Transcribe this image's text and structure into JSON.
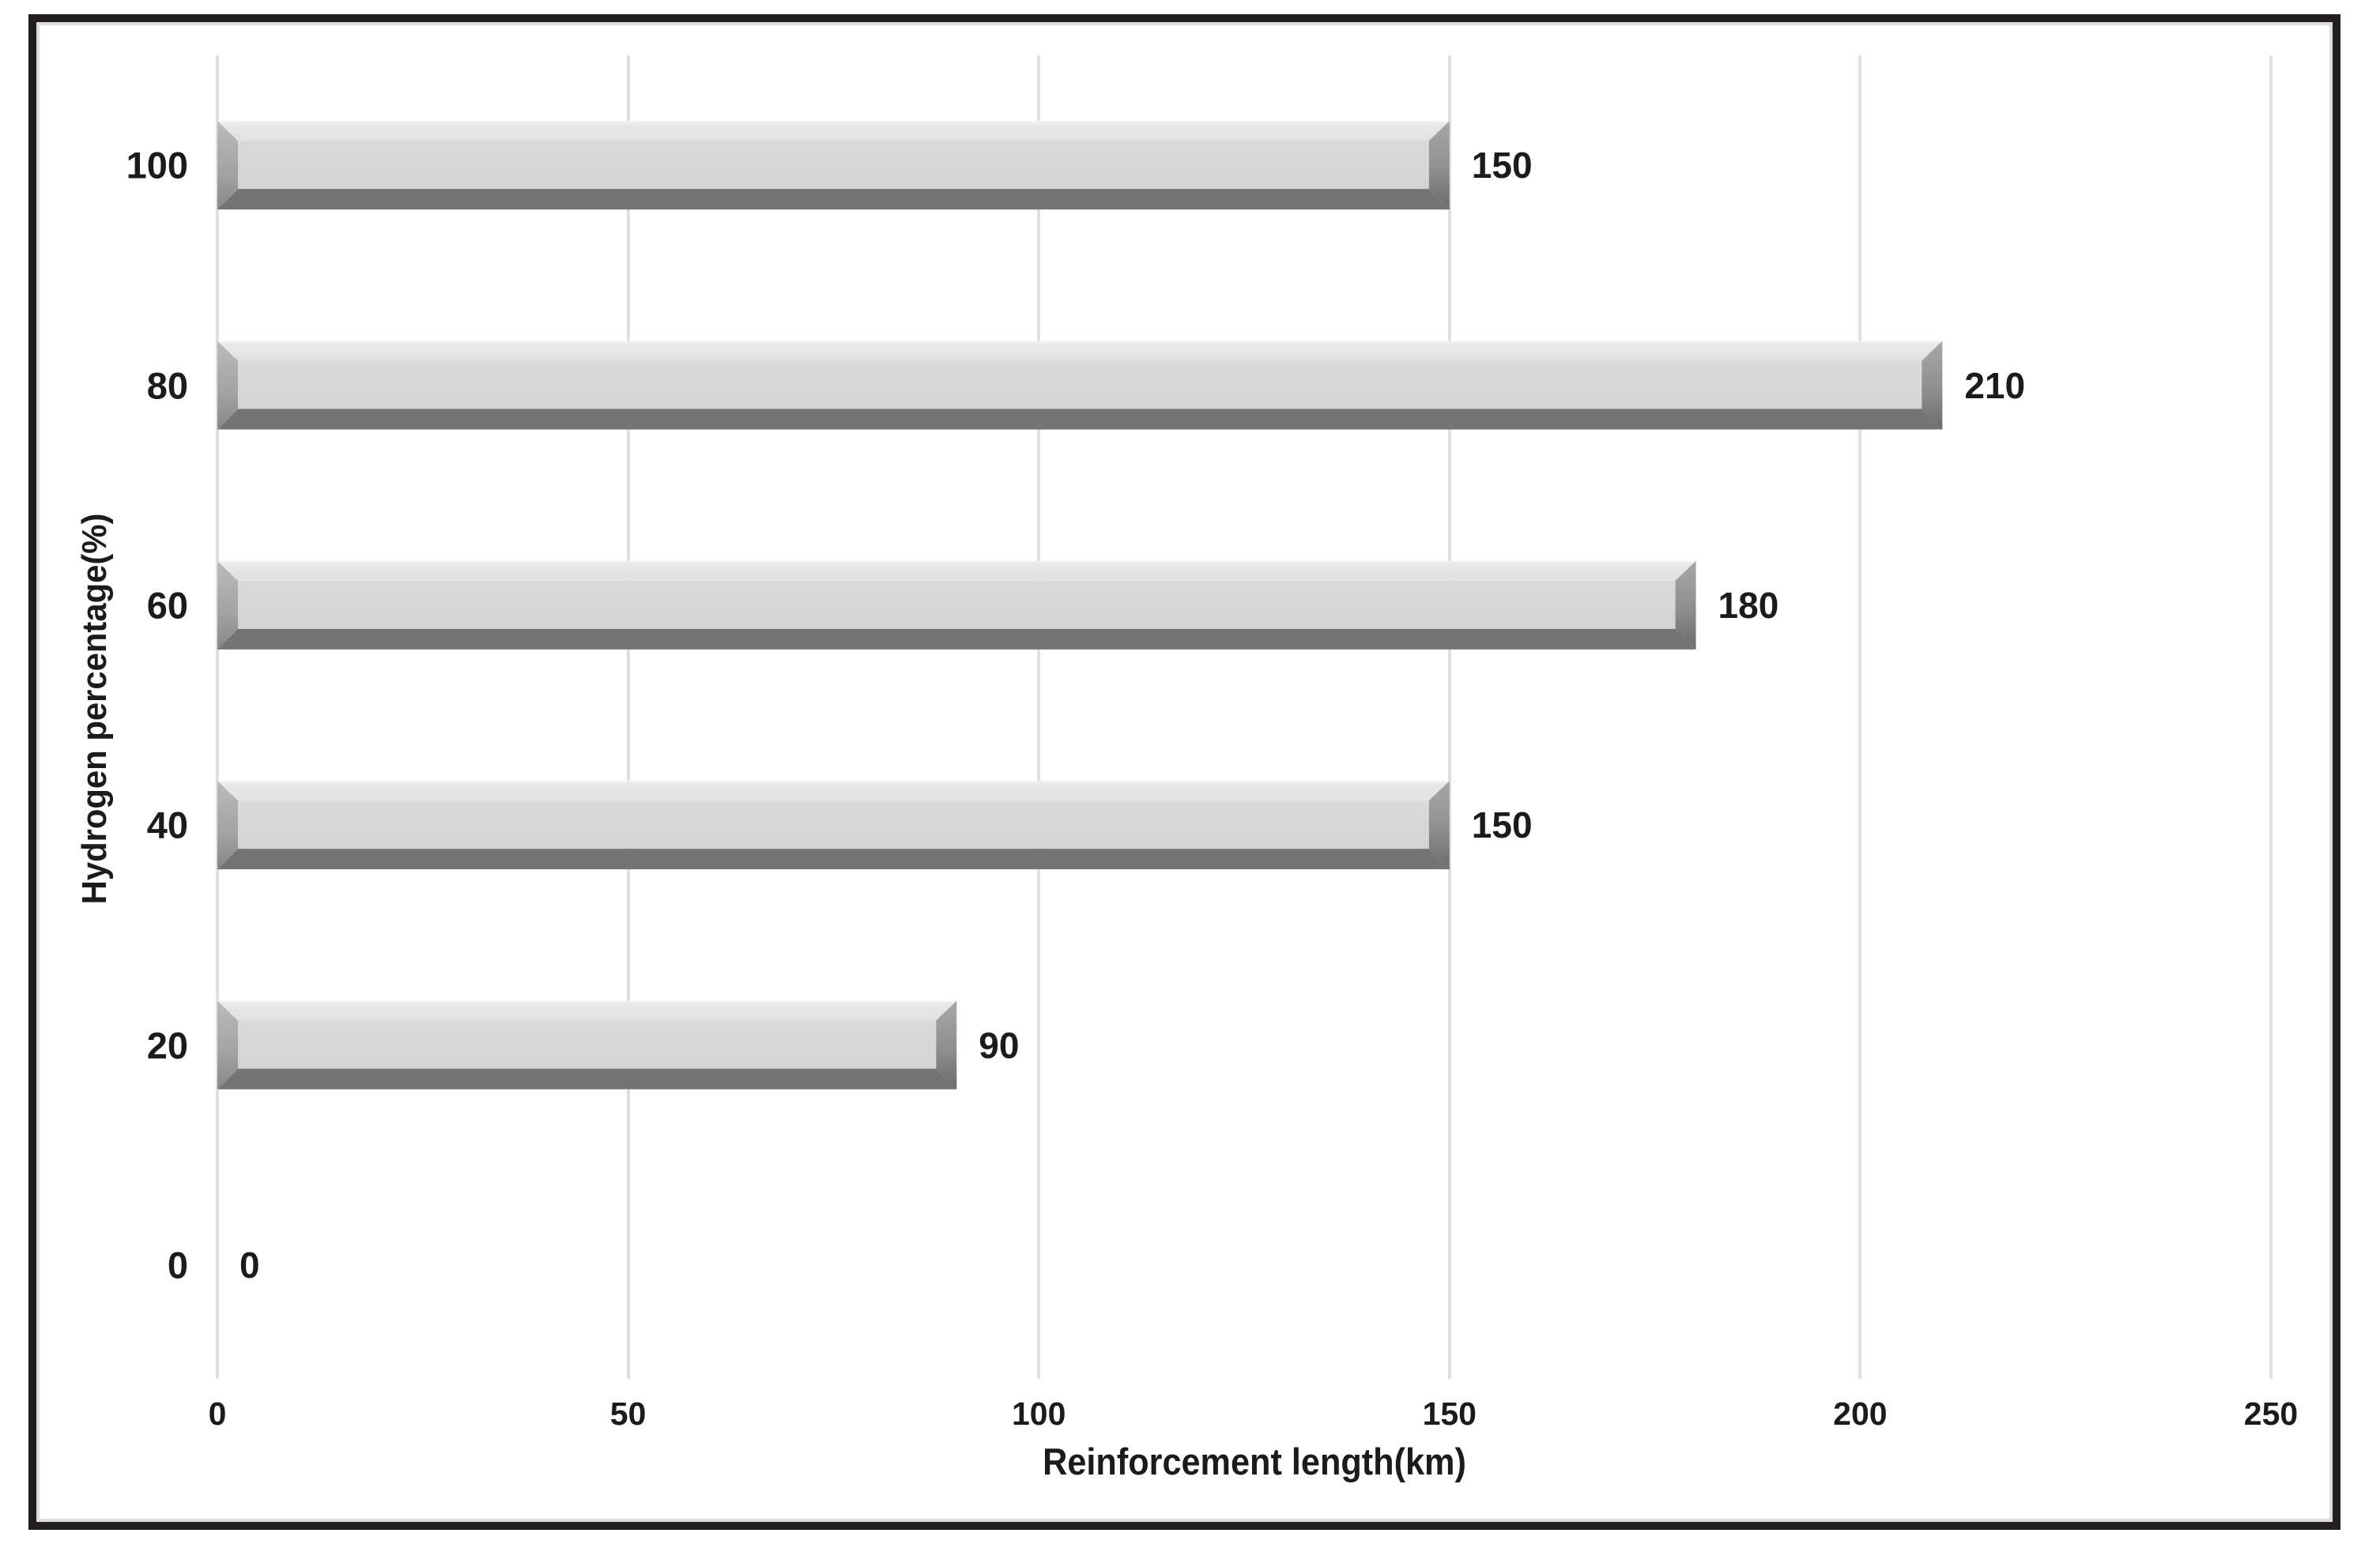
{
  "chart_data": {
    "type": "bar",
    "orientation": "horizontal",
    "title": "",
    "categories": [
      "100",
      "80",
      "60",
      "40",
      "20",
      "0"
    ],
    "values": [
      150,
      210,
      180,
      150,
      90,
      0
    ],
    "data_labels": [
      "150",
      "210",
      "180",
      "150",
      "90",
      "0"
    ],
    "xlabel": "Reinforcement length(km)",
    "ylabel": "Hydrogen percentage(%)",
    "x_ticks": [
      "0",
      "50",
      "100",
      "150",
      "200",
      "250"
    ],
    "x_tick_values": [
      0,
      50,
      100,
      150,
      200,
      250
    ],
    "xlim": [
      0,
      250
    ],
    "grid": "vertical-only",
    "legend": "none",
    "bar_style": "3d-bevel",
    "colors": {
      "bar_top_face": "#e7e6e6",
      "bar_top_highlight": "#f4f4f4",
      "bar_main_face": "#d8d7d7",
      "bar_bottom_shadow": "#757374",
      "bar_left_cap_light": "#bcbbbc",
      "bar_left_cap_dark": "#878586",
      "bar_right_cap_light": "#a8a7a8",
      "bar_right_cap_dark": "#6b696a",
      "gridline": "#e0e0e1",
      "frame_border": "#231f20",
      "frame_inner_line": "#dcdde0",
      "text": "#1d1a1b",
      "background": "#ffffff"
    }
  }
}
